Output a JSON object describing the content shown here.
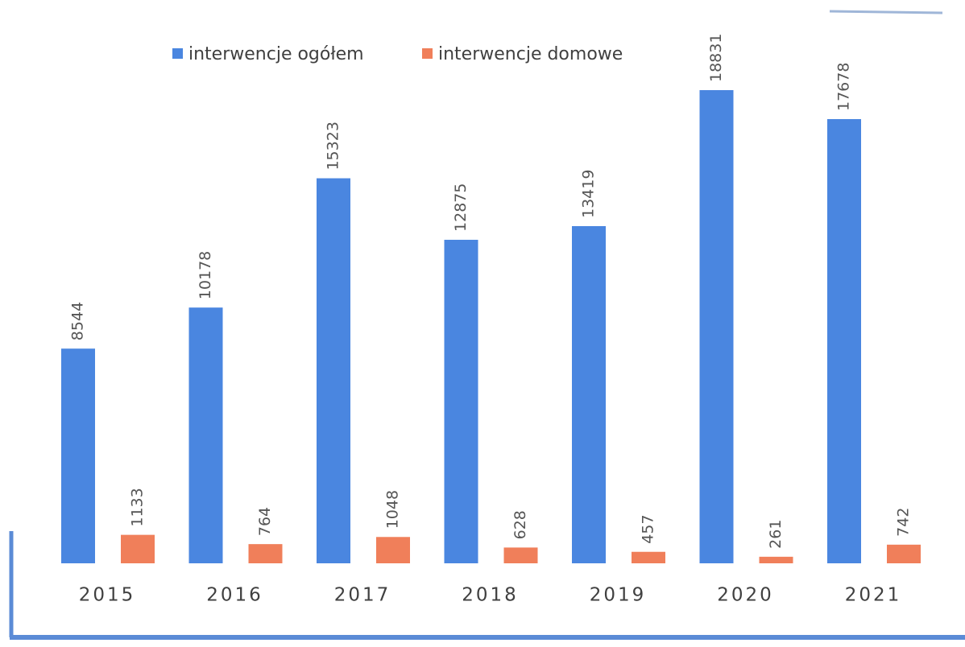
{
  "chart_data": {
    "type": "bar",
    "categories": [
      "2015",
      "2016",
      "2017",
      "2018",
      "2019",
      "2020",
      "2021"
    ],
    "series": [
      {
        "name": "interwencje ogółem",
        "color": "#4a86e0",
        "values": [
          8544,
          10178,
          15323,
          12875,
          13419,
          18831,
          17678
        ]
      },
      {
        "name": "interwencje domowe",
        "color": "#f07f5a",
        "values": [
          1133,
          764,
          1048,
          628,
          457,
          261,
          742
        ]
      }
    ],
    "legend": "top"
  }
}
